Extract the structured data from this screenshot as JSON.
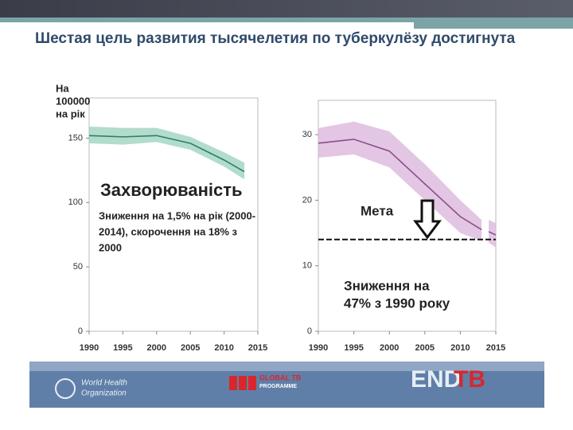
{
  "slide": {
    "title": "Шестая цель развития тысячелетия по туберкулёзу достигнута",
    "footer": {
      "who": [
        "World Health",
        "Organization"
      ],
      "gtb": [
        "GLOBAL TB",
        "PROGRAMME"
      ],
      "end": "END",
      "tb": "TB"
    }
  },
  "chart_data": [
    {
      "type": "line",
      "ylabel": [
        "На",
        "100000",
        "на рік"
      ],
      "x": [
        1990,
        1995,
        2000,
        2005,
        2010,
        2013
      ],
      "series": [
        {
          "color": "#2e7d6b",
          "band_color": "#9fd3bf",
          "values": [
            152,
            151,
            152,
            146,
            133,
            124
          ],
          "lower": [
            146,
            145,
            147,
            141,
            128,
            118
          ],
          "upper": [
            159,
            158,
            158,
            151,
            139,
            131
          ]
        }
      ],
      "xlim": [
        1990,
        2015
      ],
      "xticks": [
        1990,
        1995,
        2000,
        2005,
        2010,
        2015
      ],
      "ylim": [
        0,
        180
      ],
      "yticks": [
        0,
        50,
        100,
        150
      ],
      "annotations": [
        {
          "lines": [
            "Захворюваність"
          ]
        },
        {
          "lines": [
            "Зниження на 1,5% на рік (2000-",
            "2014), скорочення на 18%  з",
            "2000"
          ]
        }
      ]
    },
    {
      "type": "line",
      "x": [
        1990,
        1995,
        2000,
        2005,
        2010,
        2013,
        2013.5,
        2014,
        2015
      ],
      "series": [
        {
          "color": "#8a4f8a",
          "band_color": "#dcb8dc",
          "values": [
            28.7,
            29.3,
            27.5,
            22.5,
            17.5,
            15.5,
            null,
            15.2,
            14.7
          ],
          "lower": [
            26.5,
            27,
            25,
            20,
            15,
            13.8,
            null,
            13.5,
            12.8
          ],
          "upper": [
            31,
            32,
            30.5,
            25.5,
            20,
            17,
            null,
            17,
            16.5
          ]
        }
      ],
      "xlim": [
        1990,
        2015
      ],
      "xticks": [
        1990,
        1995,
        2000,
        2005,
        2010,
        2015
      ],
      "ylim": [
        0,
        35
      ],
      "yticks": [
        0,
        10,
        20,
        30
      ],
      "target": {
        "value": 14,
        "label": "Мета"
      },
      "annotations": [
        {
          "lines": [
            "Зниження на",
            "47% з 1990 року"
          ]
        }
      ]
    }
  ]
}
